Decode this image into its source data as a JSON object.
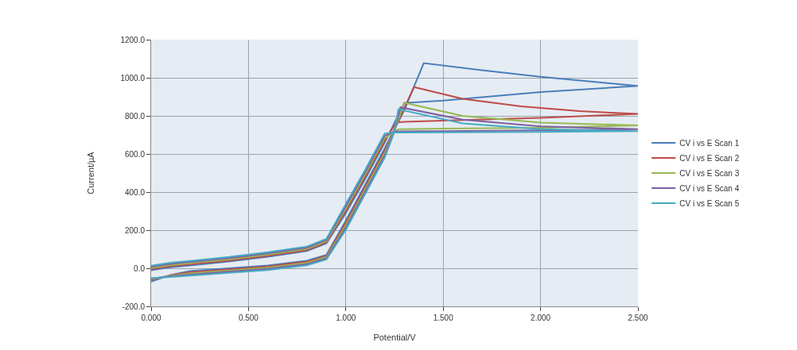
{
  "chart_data": {
    "type": "line",
    "xlabel": "Potential/V",
    "ylabel": "Current/µA",
    "xlim": [
      0,
      2.5
    ],
    "ylim": [
      -200,
      1200
    ],
    "xticks": [
      {
        "value": 0,
        "label": "0.000"
      },
      {
        "value": 0.5,
        "label": "0.500"
      },
      {
        "value": 1,
        "label": "1.000"
      },
      {
        "value": 1.5,
        "label": "1.500"
      },
      {
        "value": 2,
        "label": "2.000"
      },
      {
        "value": 2.5,
        "label": "2.500"
      }
    ],
    "yticks": [
      {
        "value": -200,
        "label": "-200.0"
      },
      {
        "value": 0,
        "label": "0.0"
      },
      {
        "value": 200,
        "label": "200.0"
      },
      {
        "value": 400,
        "label": "400.0"
      },
      {
        "value": 600,
        "label": "600.0"
      },
      {
        "value": 800,
        "label": "800.0"
      },
      {
        "value": 1000,
        "label": "1000.0"
      },
      {
        "value": 1200,
        "label": "1200.0"
      }
    ],
    "grid": true,
    "legend": "right",
    "marker": "none",
    "line_style": "solid",
    "series": [
      {
        "name": "CV i vs E Scan 1",
        "color": "#4a7ebb",
        "x": [
          0,
          0.1,
          0.2,
          0.4,
          0.6,
          0.8,
          0.9,
          1.0,
          1.1,
          1.2,
          1.3,
          1.4,
          1.7,
          2.0,
          2.5,
          2.0,
          1.5,
          1.3,
          1.2,
          1.1,
          1.0,
          0.9,
          0.8,
          0.6,
          0.4,
          0.2,
          0.1,
          0
        ],
        "values": [
          -70,
          -35,
          -15,
          0,
          15,
          40,
          70,
          250,
          440,
          630,
          830,
          1077,
          1040,
          1005,
          957,
          925,
          880,
          868,
          660,
          470,
          290,
          130,
          90,
          60,
          35,
          15,
          5,
          -10
        ]
      },
      {
        "name": "CV i vs E Scan 2",
        "color": "#be4b48",
        "x": [
          0,
          0.1,
          0.2,
          0.4,
          0.6,
          0.8,
          0.9,
          1.0,
          1.1,
          1.2,
          1.25,
          1.35,
          1.6,
          1.9,
          2.2,
          2.5,
          2.0,
          1.5,
          1.26,
          1.2,
          1.1,
          1.0,
          0.9,
          0.8,
          0.6,
          0.4,
          0.2,
          0.1,
          0
        ],
        "values": [
          -62,
          -36,
          -21,
          -6,
          9,
          34,
          64,
          238,
          428,
          618,
          730,
          951,
          890,
          850,
          825,
          810,
          790,
          775,
          767,
          672,
          482,
          302,
          136,
          96,
          66,
          41,
          21,
          11,
          -4
        ]
      },
      {
        "name": "CV i vs E Scan 3",
        "color": "#98b954",
        "x": [
          0,
          0.1,
          0.2,
          0.4,
          0.6,
          0.8,
          0.9,
          1.0,
          1.1,
          1.2,
          1.25,
          1.3,
          1.6,
          2.0,
          2.5,
          2.0,
          1.5,
          1.27,
          1.2,
          1.1,
          1.0,
          0.9,
          0.8,
          0.6,
          0.4,
          0.2,
          0.1,
          0
        ],
        "values": [
          -57,
          -38,
          -27,
          -12,
          3,
          28,
          58,
          226,
          416,
          606,
          725,
          869,
          800,
          765,
          750,
          738,
          733,
          730,
          684,
          494,
          314,
          142,
          102,
          72,
          47,
          27,
          17,
          2
        ]
      },
      {
        "name": "CV i vs E Scan 4",
        "color": "#7d60a0",
        "x": [
          0,
          0.1,
          0.2,
          0.4,
          0.6,
          0.8,
          0.9,
          1.0,
          1.1,
          1.2,
          1.25,
          1.28,
          1.6,
          2.0,
          2.5,
          2.0,
          1.5,
          1.25,
          1.2,
          1.1,
          1.0,
          0.9,
          0.8,
          0.6,
          0.4,
          0.2,
          0.1,
          0
        ],
        "values": [
          -54,
          -42,
          -33,
          -18,
          -3,
          22,
          52,
          214,
          404,
          594,
          722,
          845,
          780,
          745,
          730,
          724,
          720,
          718,
          696,
          506,
          326,
          148,
          108,
          78,
          53,
          33,
          23,
          8
        ]
      },
      {
        "name": "CV i vs E Scan 5",
        "color": "#46aac5",
        "x": [
          0,
          0.1,
          0.2,
          0.4,
          0.6,
          0.8,
          0.9,
          1.0,
          1.1,
          1.2,
          1.25,
          1.27,
          1.6,
          2.0,
          2.5,
          2.0,
          1.5,
          1.25,
          1.2,
          1.1,
          1.0,
          0.9,
          0.8,
          0.6,
          0.4,
          0.2,
          0.1,
          0
        ],
        "values": [
          -52,
          -46,
          -39,
          -24,
          -9,
          16,
          46,
          202,
          392,
          582,
          718,
          835,
          760,
          730,
          720,
          716,
          714,
          712,
          708,
          518,
          338,
          154,
          114,
          84,
          59,
          39,
          29,
          14
        ]
      }
    ]
  }
}
